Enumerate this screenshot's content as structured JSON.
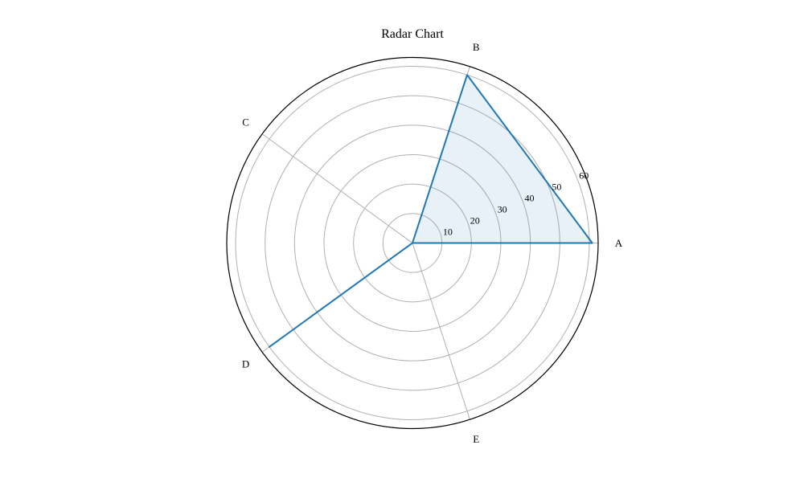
{
  "chart_data": {
    "type": "radar",
    "title": "Radar Chart",
    "categories": [
      "A",
      "B",
      "C",
      "D",
      "E"
    ],
    "series": [
      {
        "values": [
          61,
          60,
          0,
          60,
          0
        ],
        "color": "#1f77b4",
        "fill_color": "#1f77b4"
      }
    ],
    "rticks": [
      10,
      20,
      30,
      40,
      50,
      60
    ],
    "rlim": [
      0,
      63
    ],
    "grid": true
  }
}
